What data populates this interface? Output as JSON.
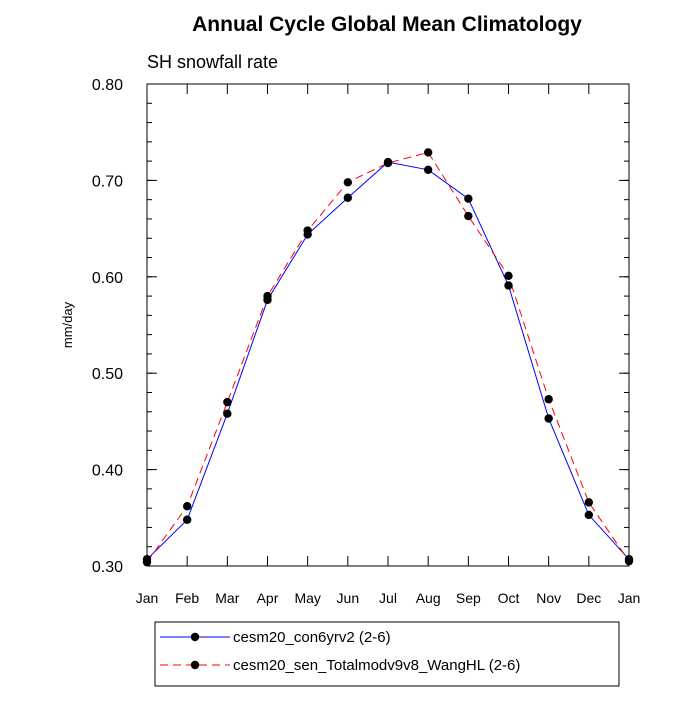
{
  "chart_data": {
    "type": "line",
    "title": "Annual Cycle Global Mean Climatology",
    "subtitle": "SH snowfall rate",
    "xlabel": "",
    "ylabel": "mm/day",
    "categories": [
      "Jan",
      "Feb",
      "Mar",
      "Apr",
      "May",
      "Jun",
      "Jul",
      "Aug",
      "Sep",
      "Oct",
      "Nov",
      "Dec",
      "Jan"
    ],
    "ylim": [
      0.3,
      0.8
    ],
    "yticks": [
      0.3,
      0.4,
      0.5,
      0.6,
      0.7,
      0.8
    ],
    "ytick_labels": [
      "0.30",
      "0.40",
      "0.50",
      "0.60",
      "0.70",
      "0.80"
    ],
    "series": [
      {
        "name": "cesm20_con6yrv2 (2-6)",
        "color": "#0000ff",
        "line_style": "solid",
        "marker": "filled-circle",
        "values": [
          0.307,
          0.348,
          0.458,
          0.576,
          0.644,
          0.682,
          0.719,
          0.711,
          0.681,
          0.591,
          0.453,
          0.353,
          0.307
        ]
      },
      {
        "name": "cesm20_sen_Totalmodv9v8_WangHL (2-6)",
        "color": "#ff0000",
        "line_style": "dashed",
        "marker": "filled-circle",
        "values": [
          0.304,
          0.362,
          0.47,
          0.58,
          0.648,
          0.698,
          0.718,
          0.729,
          0.663,
          0.601,
          0.473,
          0.366,
          0.305
        ]
      }
    ],
    "legend_position": "bottom",
    "grid": false
  }
}
